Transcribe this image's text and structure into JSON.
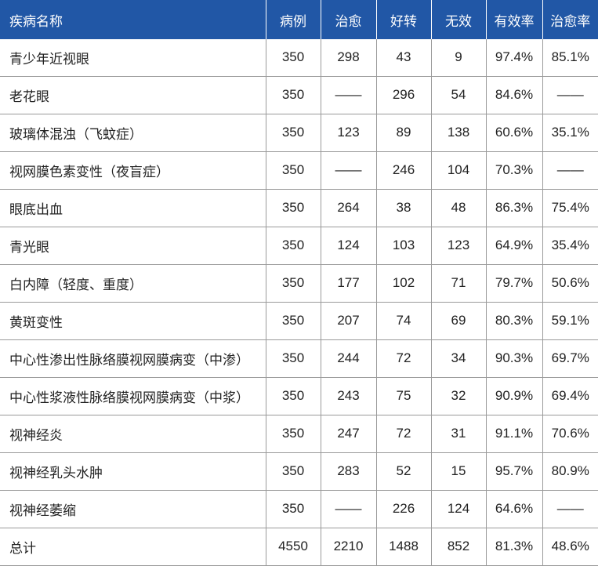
{
  "table": {
    "header": [
      "疾病名称",
      "病例",
      "治愈",
      "好转",
      "无效",
      "有效率",
      "治愈率"
    ],
    "rows": [
      [
        "青少年近视眼",
        "350",
        "298",
        "43",
        "9",
        "97.4%",
        "85.1%"
      ],
      [
        "老花眼",
        "350",
        "——",
        "296",
        "54",
        "84.6%",
        "——"
      ],
      [
        "玻璃体混浊（飞蚊症）",
        "350",
        "123",
        "89",
        "138",
        "60.6%",
        "35.1%"
      ],
      [
        "视网膜色素变性（夜盲症）",
        "350",
        "——",
        "246",
        "104",
        "70.3%",
        "——"
      ],
      [
        "眼底出血",
        "350",
        "264",
        "38",
        "48",
        "86.3%",
        "75.4%"
      ],
      [
        "青光眼",
        "350",
        "124",
        "103",
        "123",
        "64.9%",
        "35.4%"
      ],
      [
        "白内障（轻度、重度）",
        "350",
        "177",
        "102",
        "71",
        "79.7%",
        "50.6%"
      ],
      [
        "黄斑变性",
        "350",
        "207",
        "74",
        "69",
        "80.3%",
        "59.1%"
      ],
      [
        "中心性渗出性脉络膜视网膜病变（中渗）",
        "350",
        "244",
        "72",
        "34",
        "90.3%",
        "69.7%"
      ],
      [
        "中心性浆液性脉络膜视网膜病变（中浆）",
        "350",
        "243",
        "75",
        "32",
        "90.9%",
        "69.4%"
      ],
      [
        "视神经炎",
        "350",
        "247",
        "72",
        "31",
        "91.1%",
        "70.6%"
      ],
      [
        "视神经乳头水肿",
        "350",
        "283",
        "52",
        "15",
        "95.7%",
        "80.9%"
      ],
      [
        "视神经萎缩",
        "350",
        "——",
        "226",
        "124",
        "64.6%",
        "——"
      ],
      [
        "总计",
        "4550",
        "2210",
        "1488",
        "852",
        "81.3%",
        "48.6%"
      ]
    ]
  }
}
